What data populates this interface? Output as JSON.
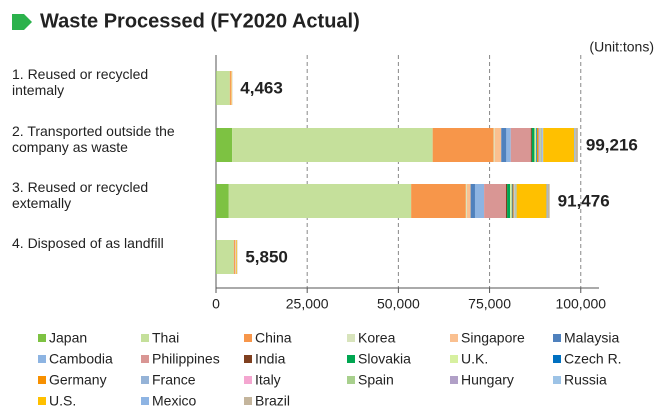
{
  "chart_data": {
    "type": "stacked-bar-horizontal",
    "title": "Waste Processed (FY2020 Actual)",
    "unit_label": "(Unit:tons)",
    "categories": [
      "1.  Reused or recycled intemaly",
      "2. Transported outside the company as waste",
      "3. Reused or recycled extemally",
      "4. Disposed of as landfill"
    ],
    "totals": [
      4463,
      99216,
      91476,
      5850
    ],
    "total_labels": [
      "4,463",
      "99,216",
      "91,476",
      "5,850"
    ],
    "xlim": [
      0,
      105000
    ],
    "xticks": [
      {
        "value": 0,
        "label": "0"
      },
      {
        "value": 25000,
        "label": "25,000"
      },
      {
        "value": 50000,
        "label": "50,000"
      },
      {
        "value": 75000,
        "label": "75,000"
      },
      {
        "value": 100000,
        "label": "100,000"
      }
    ],
    "grid": true,
    "series": [
      {
        "name": "Japan",
        "color": "#7dc242",
        "values": [
          100,
          4400,
          3500,
          200
        ]
      },
      {
        "name": "Thai",
        "color": "#c5e09b",
        "values": [
          3700,
          55000,
          50000,
          4700
        ]
      },
      {
        "name": "China",
        "color": "#f7964a",
        "values": [
          300,
          16700,
          15000,
          300
        ]
      },
      {
        "name": "Korea",
        "color": "#d8e4bc",
        "values": [
          50,
          300,
          300,
          100
        ]
      },
      {
        "name": "Singapore",
        "color": "#fac090",
        "values": [
          100,
          1800,
          1000,
          100
        ]
      },
      {
        "name": "Malaysia",
        "color": "#4f81bd",
        "values": [
          0,
          1400,
          1200,
          0
        ]
      },
      {
        "name": "Cambodia",
        "color": "#8db4e2",
        "values": [
          0,
          1200,
          2500,
          0
        ]
      },
      {
        "name": "Philippines",
        "color": "#d99694",
        "values": [
          0,
          5500,
          6000,
          100
        ]
      },
      {
        "name": "India",
        "color": "#7f3f1f",
        "values": [
          0,
          300,
          300,
          0
        ]
      },
      {
        "name": "Slovakia",
        "color": "#00a651",
        "values": [
          0,
          700,
          800,
          0
        ]
      },
      {
        "name": "U.K.",
        "color": "#d7f0a0",
        "values": [
          0,
          500,
          500,
          0
        ]
      },
      {
        "name": "Czech R.",
        "color": "#0070c0",
        "values": [
          0,
          200,
          200,
          0
        ]
      },
      {
        "name": "Germany",
        "color": "#f79000",
        "values": [
          0,
          400,
          300,
          0
        ]
      },
      {
        "name": "France",
        "color": "#95b3d7",
        "values": [
          0,
          300,
          200,
          0
        ]
      },
      {
        "name": "Italy",
        "color": "#f4a6d0",
        "values": [
          0,
          200,
          100,
          0
        ]
      },
      {
        "name": "Spain",
        "color": "#a8d08d",
        "values": [
          0,
          300,
          200,
          0
        ]
      },
      {
        "name": "Hungary",
        "color": "#b1a0c7",
        "values": [
          0,
          200,
          100,
          0
        ]
      },
      {
        "name": "Russia",
        "color": "#9dc3e6",
        "values": [
          0,
          300,
          200,
          0
        ]
      },
      {
        "name": "U.S.",
        "color": "#ffc000",
        "values": [
          100,
          8500,
          8200,
          200
        ]
      },
      {
        "name": "Mexico",
        "color": "#8eb4e3",
        "values": [
          0,
          300,
          300,
          0
        ]
      },
      {
        "name": "Brazil",
        "color": "#c4b59c",
        "values": [
          113,
          716,
          576,
          150
        ]
      }
    ]
  }
}
